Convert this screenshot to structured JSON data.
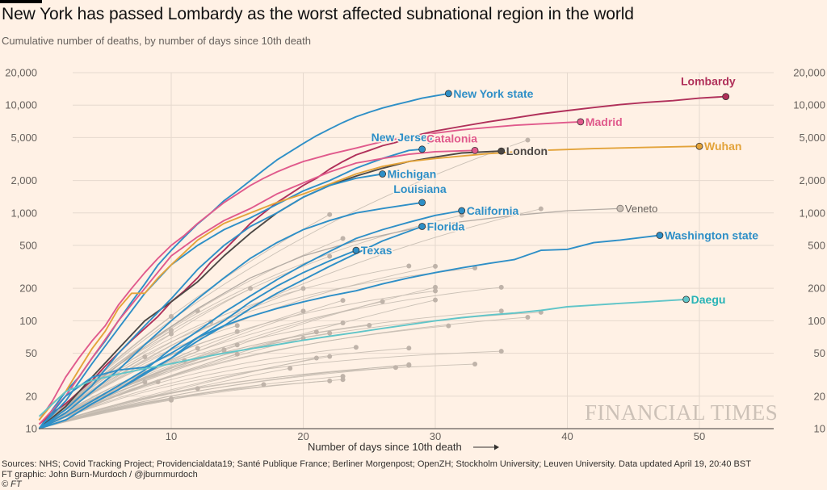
{
  "header": {
    "title": "New York has passed Lombardy as the worst affected subnational region in the world",
    "subtitle": "Cumulative number of deaths, by number of days since 10th death"
  },
  "footer": {
    "sources": "Sources: NHS; Covid Tracking Project; Providencialdata19; Santé Publique France; Berliner Morgenpost; OpenZH; Stockholm University; Leuven University. Data updated April 19, 20:40 BST",
    "credit": "FT graphic: John Burn-Murdoch / @jburnmurdoch",
    "copyright": "© FT"
  },
  "watermark": "FINANCIAL TIMES",
  "colors": {
    "background": "#fff1e5",
    "grid": "#e6d9ce",
    "axis": "#66605c",
    "context_line": "#c2b8ae",
    "context_dot": "#bfb3a9"
  },
  "chart_data": {
    "type": "line",
    "title": "New York has passed Lombardy as the worst affected subnational region in the world",
    "subtitle": "Cumulative number of deaths, by number of days since 10th death",
    "xlabel": "Number of days since 10th death",
    "ylabel": "Cumulative number of deaths",
    "x_scale": "linear",
    "y_scale": "log",
    "xlim": [
      0,
      58
    ],
    "ylim": [
      10,
      20000
    ],
    "x_ticks": [
      10,
      20,
      30,
      40,
      50
    ],
    "x_tick_labels": [
      "10",
      "20",
      "30",
      "40",
      "50"
    ],
    "y_ticks": [
      10,
      20,
      50,
      100,
      200,
      500,
      1000,
      2000,
      5000,
      10000,
      20000
    ],
    "y_tick_labels": [
      "10",
      "20",
      "50",
      "100",
      "200",
      "500",
      "1,000",
      "2,000",
      "5,000",
      "10,000",
      "20,000"
    ],
    "y_axis_labels_both_sides": true,
    "grid": true,
    "legend": "direct labels at line ends",
    "highlighted_series": [
      {
        "name": "New York state",
        "color": "#2e8fc7",
        "x": [
          0,
          1,
          2,
          3,
          4,
          5,
          6,
          7,
          8,
          9,
          10,
          11,
          12,
          13,
          14,
          15,
          16,
          17,
          18,
          19,
          20,
          21,
          22,
          23,
          24,
          25,
          26,
          27,
          28,
          29,
          30,
          31
        ],
        "y": [
          10,
          15,
          22,
          30,
          45,
          65,
          100,
          150,
          220,
          330,
          450,
          600,
          790,
          1000,
          1300,
          1600,
          2000,
          2500,
          3100,
          3700,
          4400,
          5200,
          6000,
          6900,
          7800,
          8600,
          9400,
          10100,
          10800,
          11600,
          12200,
          12800
        ]
      },
      {
        "name": "Lombardy",
        "color": "#b0305a",
        "x": [
          0,
          1,
          2,
          3,
          4,
          5,
          6,
          7,
          8,
          9,
          10,
          11,
          12,
          13,
          14,
          15,
          16,
          17,
          18,
          19,
          20,
          21,
          22,
          23,
          24,
          25,
          26,
          27,
          28,
          29,
          30,
          32,
          34,
          36,
          38,
          40,
          42,
          44,
          46,
          48,
          50,
          52
        ],
        "y": [
          11,
          14,
          17,
          22,
          28,
          38,
          50,
          66,
          85,
          110,
          150,
          190,
          250,
          350,
          450,
          600,
          800,
          1000,
          1250,
          1500,
          1800,
          2100,
          2550,
          3000,
          3450,
          3800,
          4200,
          4500,
          5000,
          5400,
          5750,
          6350,
          7000,
          7600,
          8300,
          8900,
          9500,
          10100,
          10600,
          11000,
          11600,
          12000
        ]
      },
      {
        "name": "Madrid",
        "color": "#e05a8c",
        "x": [
          0,
          1,
          2,
          3,
          4,
          5,
          6,
          7,
          8,
          9,
          10,
          11,
          12,
          13,
          14,
          15,
          16,
          17,
          18,
          19,
          20,
          22,
          24,
          26,
          28,
          30,
          32,
          34,
          36,
          38,
          40,
          41
        ],
        "y": [
          12,
          18,
          30,
          45,
          65,
          90,
          140,
          200,
          280,
          380,
          500,
          620,
          800,
          1000,
          1250,
          1500,
          1800,
          2100,
          2400,
          2700,
          3000,
          3500,
          4000,
          4600,
          5100,
          5500,
          5900,
          6200,
          6500,
          6700,
          6900,
          7000
        ]
      },
      {
        "name": "New Jersey",
        "color": "#2e8fc7",
        "x": [
          0,
          2,
          4,
          6,
          8,
          10,
          12,
          14,
          16,
          18,
          20,
          22,
          24,
          26,
          28,
          29
        ],
        "y": [
          10,
          18,
          40,
          85,
          180,
          330,
          500,
          700,
          900,
          1200,
          1600,
          2000,
          2600,
          3200,
          3800,
          3900
        ]
      },
      {
        "name": "Catalonia",
        "color": "#e05a8c",
        "x": [
          0,
          2,
          4,
          6,
          8,
          10,
          12,
          14,
          16,
          18,
          20,
          22,
          24,
          26,
          28,
          30,
          33
        ],
        "y": [
          11,
          20,
          45,
          100,
          200,
          400,
          600,
          850,
          1100,
          1500,
          1900,
          2400,
          2900,
          3200,
          3500,
          3700,
          3800
        ]
      },
      {
        "name": "London",
        "color": "#4d4845",
        "x": [
          0,
          2,
          4,
          6,
          8,
          10,
          12,
          14,
          16,
          18,
          20,
          22,
          24,
          26,
          28,
          30,
          32,
          35
        ],
        "y": [
          10,
          16,
          30,
          55,
          100,
          150,
          230,
          400,
          650,
          1000,
          1400,
          1800,
          2200,
          2600,
          3000,
          3300,
          3600,
          3750
        ]
      },
      {
        "name": "Wuhan",
        "color": "#e3a33a",
        "x": [
          0,
          1,
          2,
          3,
          4,
          5,
          6,
          7,
          8,
          9,
          10,
          12,
          14,
          16,
          18,
          20,
          22,
          24,
          26,
          28,
          30,
          34,
          38,
          42,
          46,
          50
        ],
        "y": [
          12,
          17,
          22,
          35,
          55,
          80,
          130,
          180,
          180,
          250,
          330,
          560,
          800,
          1000,
          1250,
          1500,
          1850,
          2300,
          2700,
          3000,
          3200,
          3550,
          3800,
          3950,
          4050,
          4150
        ]
      },
      {
        "name": "Michigan",
        "color": "#2e8fc7",
        "x": [
          0,
          2,
          4,
          6,
          8,
          10,
          12,
          14,
          16,
          18,
          20,
          22,
          24,
          26
        ],
        "y": [
          10,
          15,
          25,
          50,
          90,
          160,
          300,
          500,
          750,
          1000,
          1400,
          1800,
          2100,
          2300
        ]
      },
      {
        "name": "Louisiana",
        "color": "#2e8fc7",
        "x": [
          0,
          2,
          4,
          6,
          8,
          10,
          12,
          14,
          16,
          18,
          20,
          22,
          24,
          26,
          29
        ],
        "y": [
          10,
          14,
          22,
          35,
          60,
          100,
          160,
          250,
          380,
          530,
          700,
          850,
          1000,
          1100,
          1250
        ]
      },
      {
        "name": "California",
        "color": "#2e8fc7",
        "x": [
          0,
          2,
          4,
          6,
          8,
          10,
          12,
          14,
          16,
          18,
          20,
          22,
          24,
          26,
          28,
          30,
          32
        ],
        "y": [
          10,
          13,
          18,
          25,
          35,
          55,
          80,
          120,
          170,
          240,
          330,
          440,
          580,
          700,
          820,
          950,
          1050
        ]
      },
      {
        "name": "Florida",
        "color": "#2e8fc7",
        "x": [
          0,
          2,
          4,
          6,
          8,
          10,
          12,
          14,
          16,
          18,
          20,
          22,
          24,
          26,
          29
        ],
        "y": [
          10,
          12,
          17,
          23,
          33,
          45,
          65,
          90,
          130,
          180,
          240,
          320,
          420,
          550,
          750
        ]
      },
      {
        "name": "Texas",
        "color": "#2e8fc7",
        "x": [
          0,
          2,
          4,
          6,
          8,
          10,
          12,
          14,
          16,
          18,
          20,
          22,
          24
        ],
        "y": [
          10,
          12,
          17,
          23,
          32,
          45,
          70,
          100,
          150,
          210,
          280,
          360,
          450
        ]
      },
      {
        "name": "Washington state",
        "color": "#2e8fc7",
        "x": [
          0,
          2,
          4,
          6,
          8,
          10,
          12,
          14,
          16,
          18,
          20,
          22,
          24,
          26,
          28,
          30,
          32,
          34,
          36,
          38,
          40,
          42,
          44,
          46,
          47
        ],
        "y": [
          10,
          20,
          30,
          35,
          37,
          50,
          70,
          90,
          110,
          130,
          150,
          170,
          190,
          220,
          250,
          280,
          310,
          340,
          370,
          450,
          460,
          530,
          560,
          600,
          620
        ]
      },
      {
        "name": "Daegu",
        "color": "#60c5c8",
        "x": [
          0,
          2,
          4,
          6,
          8,
          10,
          12,
          14,
          16,
          18,
          20,
          22,
          24,
          26,
          28,
          30,
          32,
          34,
          36,
          38,
          40,
          42,
          44,
          46,
          49
        ],
        "y": [
          13,
          22,
          28,
          32,
          36,
          40,
          45,
          50,
          55,
          60,
          66,
          72,
          78,
          85,
          92,
          100,
          107,
          113,
          118,
          125,
          135,
          140,
          145,
          150,
          158
        ]
      }
    ],
    "labeled_context_series": [
      {
        "name": "Veneto",
        "color": "#b3aba4",
        "x": [
          0,
          4,
          8,
          12,
          16,
          20,
          24,
          28,
          32,
          36,
          40,
          44
        ],
        "y": [
          10,
          25,
          60,
          130,
          250,
          400,
          550,
          700,
          830,
          950,
          1050,
          1100
        ]
      }
    ],
    "unlabeled_context_series_count": 60
  }
}
